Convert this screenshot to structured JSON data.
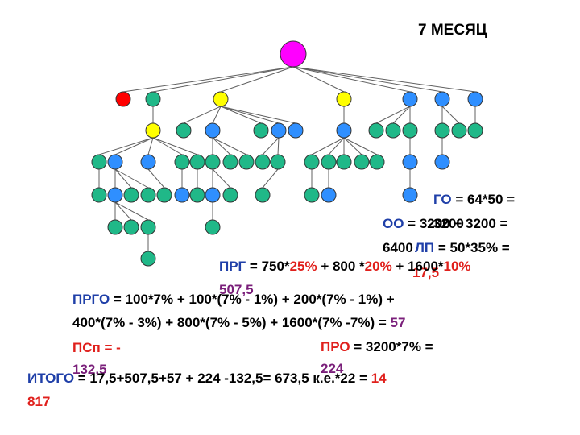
{
  "title": "7 МЕСЯЦ",
  "colors": {
    "root": "#ff00ff",
    "red_node": "#ff0000",
    "teal_node": "#20b888",
    "yellow_node": "#ffff00",
    "blue_node": "#2f8fff",
    "line": "#606060",
    "label_blue": "#1f3fa8",
    "label_red": "#e0201c",
    "label_purple": "#7a1f7a"
  },
  "formulas": {
    "go": {
      "label": "ГО",
      "expr": " = 64*50 ="
    },
    "go_val": "3200",
    "oo": {
      "label": "ОО",
      "expr": " = 3200 + 3200 ="
    },
    "oo_val": "6400",
    "lp": {
      "label": "ЛП",
      "expr": " = 50*35% ="
    },
    "lp_val": "17,5",
    "prg": {
      "label": "ПРГ",
      "p1": " = 750*",
      "pct1": "25%",
      "p2": " + 800 *",
      "pct2": "20%",
      "p3": " + 1600*",
      "pct3": "10%"
    },
    "prg_val": "507,5",
    "prgo": {
      "label": "ПРГО",
      "line1": " = 100*7% + 100*(7% - 1%) + 200*(7% - 1%) +",
      "line2": "400*(7% - 3%) + 800*(7% - 5%) + 1600*(7% -7%) = ",
      "result": "57"
    },
    "psp": {
      "label": "ПСп",
      "expr": " = -"
    },
    "psp_val": "132,5",
    "pro": {
      "label": "ПРО",
      "expr": " = 3200*7% ="
    },
    "pro_val": "224",
    "itogo": {
      "label": "ИТОГО",
      "expr": " = 17,5+507,5+57 + 224 -132,5= 673,5 к.е.*22 = ",
      "result1": "14",
      "result2": "817"
    }
  }
}
